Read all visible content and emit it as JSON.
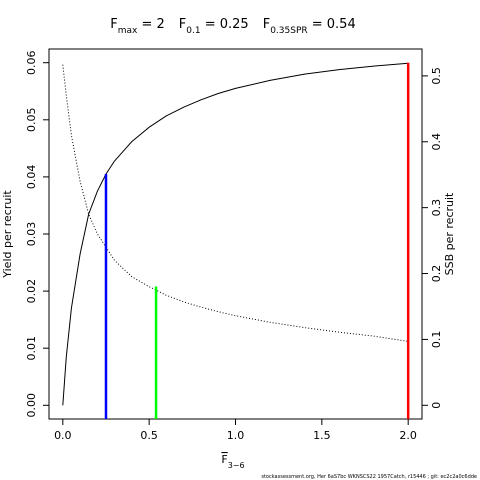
{
  "chart_data": {
    "type": "line",
    "title_parts": [
      {
        "main": "F",
        "sub": "max",
        "value": " = 2"
      },
      {
        "main": "F",
        "sub": "0.1",
        "value": " = 0.25"
      },
      {
        "main": "F",
        "sub": "0.35SPR",
        "value": " = 0.54"
      }
    ],
    "xlabel": {
      "main": "F",
      "sub": "3−6"
    },
    "ylabel_left": "Yield per recruit",
    "ylabel_right": "SSB per recruit",
    "xlim": [
      -0.08,
      2.08
    ],
    "ylim_left": [
      -0.0024,
      0.0624
    ],
    "ylim_right": [
      -0.0208,
      0.5408
    ],
    "x_ticks": [
      0.0,
      0.5,
      1.0,
      1.5,
      2.0
    ],
    "x_tick_labels": [
      "0.0",
      "0.5",
      "1.0",
      "1.5",
      "2.0"
    ],
    "y_left_ticks": [
      0.0,
      0.01,
      0.02,
      0.03,
      0.04,
      0.05,
      0.06
    ],
    "y_left_tick_labels": [
      "0.00",
      "0.01",
      "0.02",
      "0.03",
      "0.04",
      "0.05",
      "0.06"
    ],
    "y_right_ticks": [
      0.0,
      0.1,
      0.2,
      0.3,
      0.4,
      0.5
    ],
    "y_right_tick_labels": [
      "0",
      "0.1",
      "0.2",
      "0.3",
      "0.4",
      "0.5"
    ],
    "series": [
      {
        "axis": "left",
        "style": "solid",
        "x": [
          0.0,
          0.02,
          0.05,
          0.1,
          0.15,
          0.2,
          0.25,
          0.3,
          0.4,
          0.5,
          0.6,
          0.7,
          0.8,
          0.9,
          1.0,
          1.2,
          1.4,
          1.6,
          1.8,
          2.0
        ],
        "y": [
          0.0,
          0.0085,
          0.017,
          0.0265,
          0.0335,
          0.0375,
          0.0405,
          0.0428,
          0.0462,
          0.0487,
          0.0507,
          0.0522,
          0.0535,
          0.0546,
          0.0555,
          0.0569,
          0.058,
          0.0588,
          0.0594,
          0.0599
        ]
      },
      {
        "axis": "right",
        "style": "dotted",
        "x": [
          0.0,
          0.02,
          0.05,
          0.1,
          0.15,
          0.2,
          0.25,
          0.3,
          0.4,
          0.5,
          0.6,
          0.7,
          0.8,
          0.9,
          1.0,
          1.2,
          1.4,
          1.6,
          1.8,
          2.0
        ],
        "y": [
          0.517,
          0.47,
          0.41,
          0.34,
          0.29,
          0.26,
          0.24,
          0.22,
          0.195,
          0.18,
          0.167,
          0.157,
          0.149,
          0.142,
          0.136,
          0.126,
          0.118,
          0.111,
          0.105,
          0.097
        ]
      }
    ],
    "reference_lines": [
      {
        "label": "F0.1",
        "x": 0.25,
        "y_left": 0.0405,
        "color": "#0000ff"
      },
      {
        "label": "F0.35SPR",
        "x": 0.54,
        "y_left": 0.0208,
        "color": "#00ff00"
      },
      {
        "label": "Fmax",
        "x": 2.0,
        "y_left": 0.06,
        "color": "#ff0000"
      }
    ]
  },
  "footer": "stockassessment.org,  Her  6aS7bc  WKNSCS22  1957Catch,  r15446 ;  git:  ec2c2a0c6dde"
}
